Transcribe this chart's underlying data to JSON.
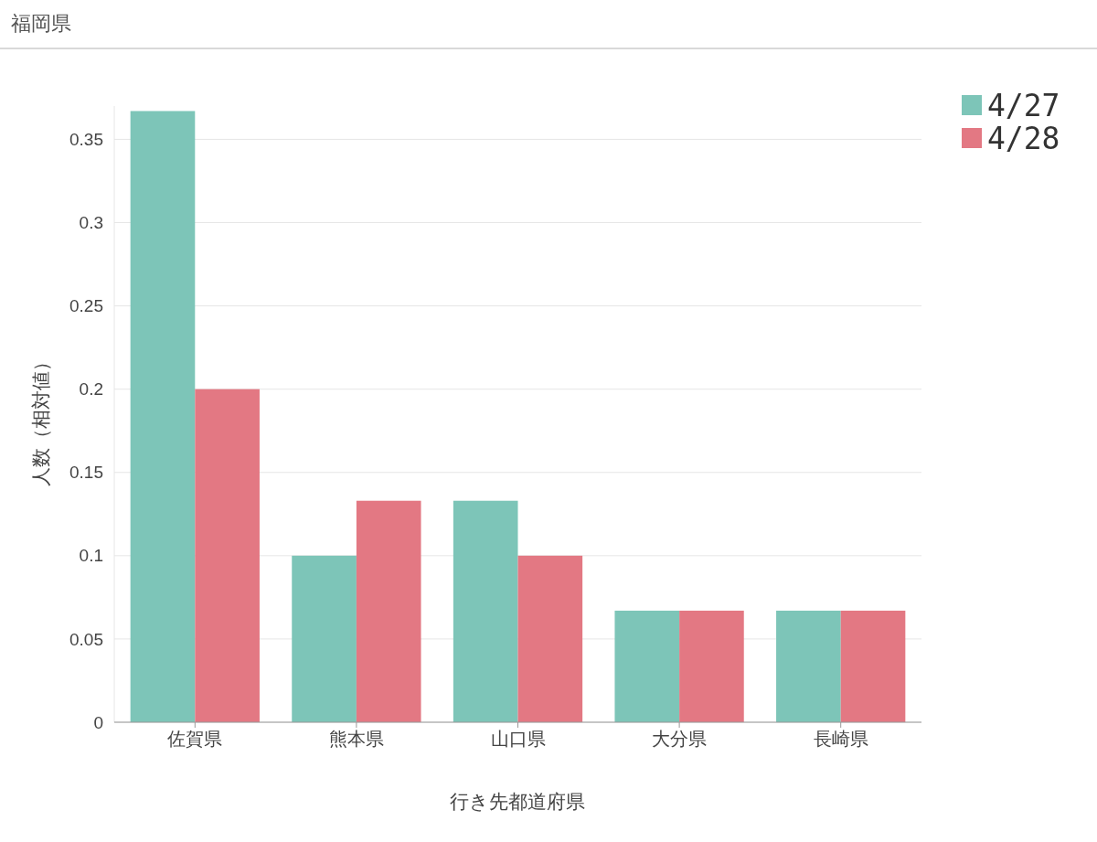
{
  "chart_data": {
    "type": "bar",
    "title": "福岡県",
    "xlabel": "行き先都道府県",
    "ylabel": "人数（相対値）",
    "categories": [
      "佐賀県",
      "熊本県",
      "山口県",
      "大分県",
      "長崎県"
    ],
    "series": [
      {
        "name": "4/27",
        "color": "#7dc5b8",
        "values": [
          0.367,
          0.1,
          0.133,
          0.067,
          0.067
        ]
      },
      {
        "name": "4/28",
        "color": "#e37883",
        "values": [
          0.2,
          0.133,
          0.1,
          0.067,
          0.067
        ]
      }
    ],
    "ylim": [
      0,
      0.37
    ],
    "yticks": [
      0,
      0.05,
      0.1,
      0.15,
      0.2,
      0.25,
      0.3,
      0.35
    ],
    "grid": "y",
    "legend": "top right"
  }
}
